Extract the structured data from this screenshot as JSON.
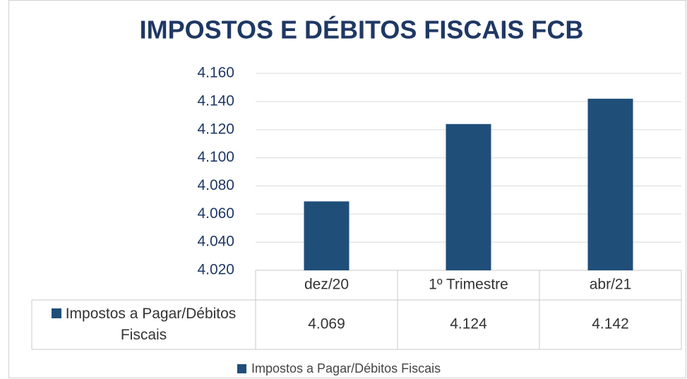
{
  "chart_data": {
    "type": "bar",
    "title": "IMPOSTOS E DÉBITOS FISCAIS FCB",
    "categories": [
      "dez/20",
      "1º Trimestre",
      "abr/21"
    ],
    "series": [
      {
        "name": "Impostos a Pagar/Débitos Fiscais",
        "color": "#1f4e79",
        "values": [
          4069,
          4124,
          4142
        ],
        "value_labels": [
          "4.069",
          "4.124",
          "4.142"
        ]
      }
    ],
    "ylim": [
      4020,
      4160
    ],
    "yticks": [
      {
        "value": 4020,
        "label": "4.020"
      },
      {
        "value": 4040,
        "label": "4.040"
      },
      {
        "value": 4060,
        "label": "4.060"
      },
      {
        "value": 4080,
        "label": "4.080"
      },
      {
        "value": 4100,
        "label": "4.100"
      },
      {
        "value": 4120,
        "label": "4.120"
      },
      {
        "value": 4140,
        "label": "4.140"
      },
      {
        "value": 4160,
        "label": "4.160"
      }
    ],
    "grid": true,
    "legend": "bottom"
  }
}
